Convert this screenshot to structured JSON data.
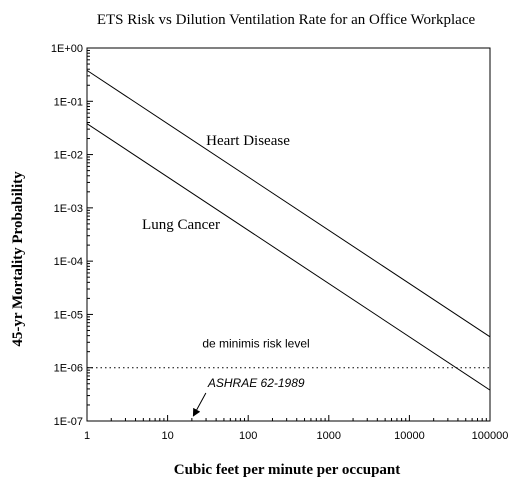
{
  "chart_data": {
    "type": "line",
    "title": "ETS Risk vs Dilution Ventilation Rate for an Office Workplace",
    "xlabel": "Cubic feet per minute per occupant",
    "ylabel": "45-yr  Mortality Probability",
    "x_scale": "log",
    "y_scale": "log",
    "xlim": [
      1,
      100000
    ],
    "ylim": [
      1e-07,
      1
    ],
    "x_ticks": [
      1,
      10,
      100,
      1000,
      10000,
      100000
    ],
    "x_tick_labels": [
      "1",
      "10",
      "100",
      "1000",
      "10000",
      "100000"
    ],
    "y_ticks": [
      1e-07,
      1e-06,
      1e-05,
      0.0001,
      0.001,
      0.01,
      0.1,
      1
    ],
    "y_tick_labels": [
      "1E-07",
      "1E-06",
      "1E-05",
      "1E-04",
      "1E-03",
      "1E-02",
      "1E-01",
      "1E+00"
    ],
    "grid": false,
    "legend": "none",
    "series": [
      {
        "name": "Heart Disease",
        "x": [
          1,
          100000
        ],
        "y": [
          0.38,
          3.8e-06
        ],
        "color": "#000000",
        "style": "solid"
      },
      {
        "name": "Lung Cancer",
        "x": [
          1,
          100000
        ],
        "y": [
          0.038,
          3.8e-07
        ],
        "color": "#000000",
        "style": "solid"
      }
    ],
    "reference_lines": [
      {
        "label": "de minimis risk level",
        "y": 1e-06,
        "style": "dotted",
        "color": "#000000"
      }
    ],
    "annotations": [
      {
        "text": "ASHRAE 62-1989",
        "x": 20,
        "style": "arrow-to-x-axis"
      }
    ]
  }
}
